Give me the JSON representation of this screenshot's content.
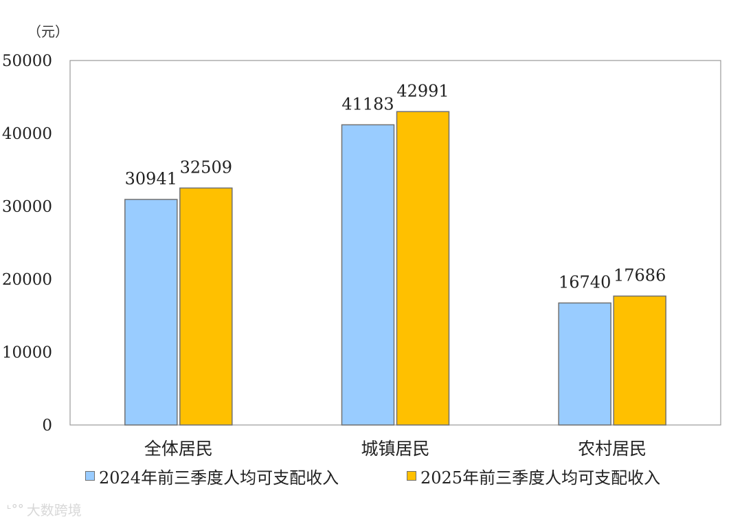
{
  "unit_label": "（元）",
  "colors": {
    "series_2024": "#99ccff",
    "series_2025": "#ffc000",
    "bar_border": "#707070",
    "frame": "#9a9a9a"
  },
  "chart_data": {
    "type": "bar",
    "categories": [
      "全体居民",
      "城镇居民",
      "农村居民"
    ],
    "series": [
      {
        "name": "2024年前三季度人均可支配收入",
        "values": [
          30941,
          41183,
          16740
        ]
      },
      {
        "name": "2025年前三季度人均可支配收入",
        "values": [
          32509,
          42991,
          17686
        ]
      }
    ],
    "ylim": [
      0,
      50000
    ],
    "yticks": [
      "0",
      "10000",
      "20000",
      "30000",
      "40000",
      "50000"
    ],
    "ylabel": "（元）",
    "grid": false,
    "legend_position": "bottom",
    "data_labels": true
  },
  "watermark": {
    "logo": "ᶫ°°",
    "text": "大数跨境"
  }
}
